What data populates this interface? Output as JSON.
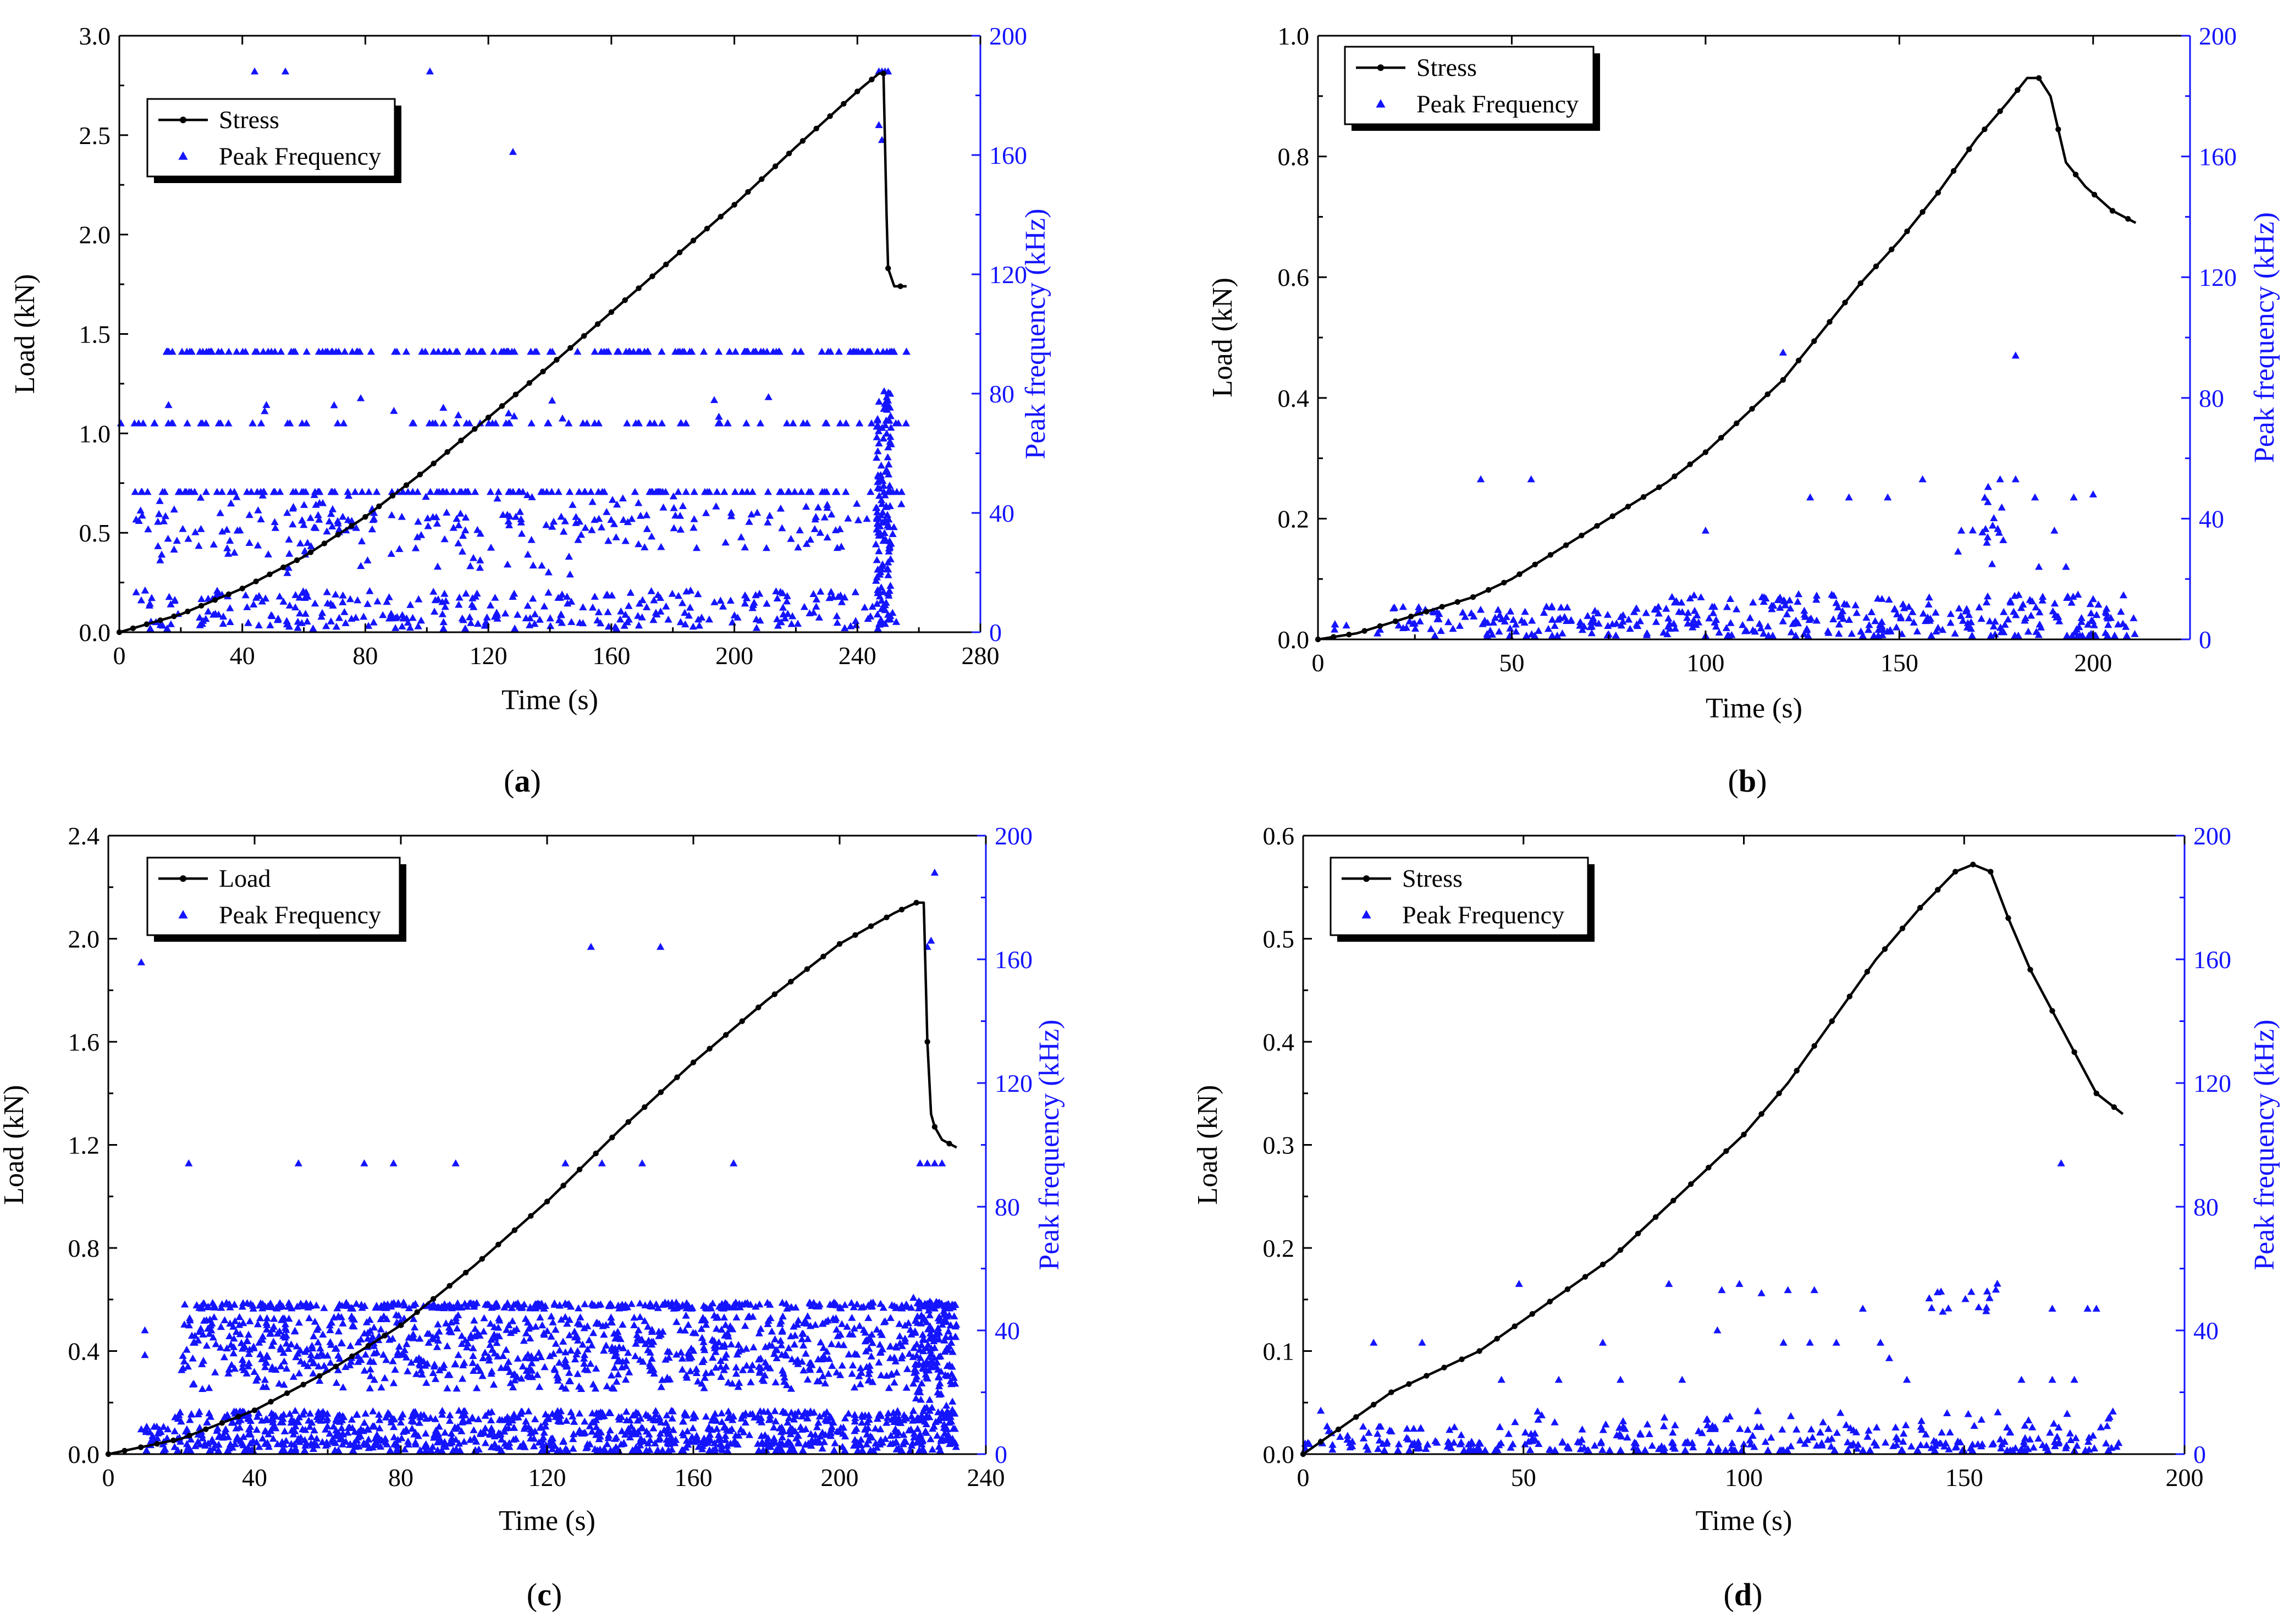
{
  "colors": {
    "load": "#000000",
    "peak": "#1414ff",
    "axis": "#000000"
  },
  "chart_data": [
    {
      "id": "a",
      "caption_open": "(",
      "caption": "a",
      "caption_close": ")",
      "type": "line+scatter",
      "xlabel": "Time (s)",
      "ylabel": "Load (kN)",
      "y2label": "Peak frequency (kHz)",
      "xlim": [
        0,
        280
      ],
      "xticks": [
        0,
        40,
        80,
        120,
        160,
        200,
        240,
        280
      ],
      "ylim": [
        0,
        3.0
      ],
      "yticks": [
        0.0,
        0.5,
        1.0,
        1.5,
        2.0,
        2.5,
        3.0
      ],
      "ydecimals": 1,
      "y2lim": [
        0,
        200
      ],
      "y2ticks": [
        0,
        40,
        80,
        120,
        160,
        200
      ],
      "legend": [
        "Stress",
        "Peak Frequency"
      ],
      "line": {
        "x": [
          0,
          20,
          40,
          60,
          80,
          100,
          120,
          140,
          160,
          180,
          200,
          220,
          240,
          247,
          248.5,
          249.5,
          250,
          252,
          256
        ],
        "y": [
          0,
          0.09,
          0.22,
          0.38,
          0.58,
          0.82,
          1.08,
          1.34,
          1.61,
          1.88,
          2.15,
          2.44,
          2.72,
          2.81,
          2.81,
          2.1,
          1.83,
          1.74,
          1.74
        ]
      },
      "scatter": {
        "x_end": 256,
        "bands": [
          {
            "y": 94,
            "from": 15,
            "to": 256,
            "density": 0.72,
            "jitter": 0
          },
          {
            "y": 70,
            "from": 0,
            "to": 256,
            "density": 0.34,
            "jitter": 0
          },
          {
            "y": 75,
            "from": 15,
            "to": 240,
            "density": 0.07,
            "jitter": 4
          },
          {
            "y": 47,
            "from": 5,
            "to": 256,
            "density": 0.58,
            "jitter": 0
          },
          {
            "y": 40,
            "from": 5,
            "to": 256,
            "density": 0.45,
            "jitter": 6
          },
          {
            "y": 34,
            "from": 5,
            "to": 256,
            "density": 0.45,
            "jitter": 6
          },
          {
            "y": 24,
            "from": 0,
            "to": 150,
            "density": 0.22,
            "jitter": 5
          },
          {
            "y": 11,
            "from": 5,
            "to": 256,
            "density": 0.6,
            "jitter": 3
          },
          {
            "y": 4,
            "from": 5,
            "to": 256,
            "density": 0.7,
            "jitter": 3
          }
        ],
        "cluster": {
          "x": [
            246,
            251
          ],
          "y": [
            2,
            82
          ],
          "count": 130
        },
        "points": [
          [
            44,
            188
          ],
          [
            54,
            188
          ],
          [
            101,
            188
          ],
          [
            128,
            161
          ],
          [
            247,
            188
          ],
          [
            248,
            188
          ],
          [
            249,
            188
          ],
          [
            250,
            188
          ],
          [
            247,
            170
          ],
          [
            248,
            165
          ]
        ]
      }
    },
    {
      "id": "b",
      "caption_open": "(",
      "caption": "b",
      "caption_close": ")",
      "type": "line+scatter",
      "xlabel": "Time (s)",
      "ylabel": "Load (kN)",
      "y2label": "Peak frequency (kHz)",
      "xlim": [
        0,
        225
      ],
      "xticks": [
        0,
        50,
        100,
        150,
        200
      ],
      "ylim": [
        0,
        1.0
      ],
      "yticks": [
        0.0,
        0.2,
        0.4,
        0.6,
        0.8,
        1.0
      ],
      "ydecimals": 1,
      "y2lim": [
        0,
        200
      ],
      "y2ticks": [
        0,
        40,
        80,
        120,
        160,
        200
      ],
      "legend": [
        "Stress",
        "Peak Frequency"
      ],
      "line": {
        "x": [
          0,
          10,
          20,
          30,
          40,
          50,
          60,
          70,
          80,
          90,
          100,
          110,
          120,
          130,
          140,
          150,
          160,
          170,
          178,
          183,
          186,
          189,
          193,
          198,
          205,
          211
        ],
        "y": [
          0,
          0.01,
          0.03,
          0.05,
          0.07,
          0.1,
          0.14,
          0.18,
          0.22,
          0.26,
          0.31,
          0.37,
          0.43,
          0.51,
          0.59,
          0.66,
          0.74,
          0.83,
          0.89,
          0.93,
          0.93,
          0.9,
          0.79,
          0.75,
          0.71,
          0.69
        ]
      },
      "scatter": {
        "x_end": 211,
        "bands": [
          {
            "y": 3,
            "from": 2,
            "to": 211,
            "density": 0.9,
            "jitter": 3
          },
          {
            "y": 8,
            "from": 15,
            "to": 211,
            "density": 0.9,
            "jitter": 3
          },
          {
            "y": 13,
            "from": 90,
            "to": 211,
            "density": 0.55,
            "jitter": 2
          }
        ],
        "cluster": {
          "x": [
            165,
            178
          ],
          "y": [
            24,
            52
          ],
          "count": 16
        },
        "points": [
          [
            42,
            53
          ],
          [
            55,
            53
          ],
          [
            100,
            36
          ],
          [
            120,
            95
          ],
          [
            127,
            47
          ],
          [
            137,
            47
          ],
          [
            147,
            47
          ],
          [
            156,
            53
          ],
          [
            166,
            36
          ],
          [
            180,
            94
          ],
          [
            176,
            53
          ],
          [
            180,
            53
          ],
          [
            185,
            47
          ],
          [
            190,
            36
          ],
          [
            193,
            24
          ],
          [
            195,
            47
          ],
          [
            200,
            48
          ],
          [
            186,
            24
          ]
        ]
      }
    },
    {
      "id": "c",
      "caption_open": "(",
      "caption": "c",
      "caption_close": ")",
      "type": "line+scatter",
      "xlabel": "Time (s)",
      "ylabel": "Load (kN)",
      "y2label": "Peak frequency (kHz)",
      "xlim": [
        0,
        240
      ],
      "xticks": [
        0,
        40,
        80,
        120,
        160,
        200,
        240
      ],
      "ylim": [
        0,
        2.4
      ],
      "yticks": [
        0.0,
        0.4,
        0.8,
        1.2,
        1.6,
        2.0,
        2.4
      ],
      "ydecimals": 1,
      "y2lim": [
        0,
        200
      ],
      "y2ticks": [
        0,
        40,
        80,
        120,
        160,
        200
      ],
      "legend": [
        "Load",
        "Peak Frequency"
      ],
      "line": {
        "x": [
          0,
          20,
          40,
          60,
          80,
          100,
          120,
          140,
          160,
          180,
          200,
          215,
          221,
          223,
          224,
          225,
          226,
          228,
          232
        ],
        "y": [
          0,
          0.06,
          0.17,
          0.32,
          0.5,
          0.73,
          0.98,
          1.26,
          1.52,
          1.76,
          1.98,
          2.1,
          2.14,
          2.14,
          1.6,
          1.32,
          1.27,
          1.22,
          1.19
        ]
      },
      "scatter": {
        "x_end": 232,
        "bands": [
          {
            "y": 48,
            "from": 20,
            "to": 232,
            "density": 1.6,
            "jitter": 1
          },
          {
            "y": 42,
            "from": 20,
            "to": 232,
            "density": 1.2,
            "jitter": 3
          },
          {
            "y": 36,
            "from": 20,
            "to": 232,
            "density": 1.3,
            "jitter": 3
          },
          {
            "y": 30,
            "from": 20,
            "to": 232,
            "density": 1.3,
            "jitter": 3
          },
          {
            "y": 24,
            "from": 20,
            "to": 232,
            "density": 0.8,
            "jitter": 3
          },
          {
            "y": 12,
            "from": 18,
            "to": 232,
            "density": 1.8,
            "jitter": 2
          },
          {
            "y": 6,
            "from": 10,
            "to": 232,
            "density": 2.2,
            "jitter": 3
          },
          {
            "y": 2,
            "from": 10,
            "to": 232,
            "density": 1.2,
            "jitter": 2
          }
        ],
        "cluster": {
          "x": [
            220,
            232
          ],
          "y": [
            2,
            52
          ],
          "count": 120
        },
        "points": [
          [
            9,
            159
          ],
          [
            22,
            94
          ],
          [
            52,
            94
          ],
          [
            70,
            94
          ],
          [
            78,
            94
          ],
          [
            95,
            94
          ],
          [
            125,
            94
          ],
          [
            132,
            164
          ],
          [
            135,
            94
          ],
          [
            146,
            94
          ],
          [
            151,
            164
          ],
          [
            171,
            94
          ],
          [
            222,
            94
          ],
          [
            224,
            94
          ],
          [
            226,
            94
          ],
          [
            228,
            94
          ],
          [
            224,
            164
          ],
          [
            225,
            166
          ],
          [
            226,
            188
          ],
          [
            10,
            40
          ],
          [
            10,
            32
          ],
          [
            9,
            8
          ]
        ]
      }
    },
    {
      "id": "d",
      "caption_open": "(",
      "caption": "d",
      "caption_close": ")",
      "type": "line+scatter",
      "xlabel": "Time (s)",
      "ylabel": "Load (kN)",
      "y2label": "Peak frequency (kHz)",
      "xlim": [
        0,
        200
      ],
      "xticks": [
        0,
        50,
        100,
        150,
        200
      ],
      "ylim": [
        0,
        0.6
      ],
      "yticks": [
        0.0,
        0.1,
        0.2,
        0.3,
        0.4,
        0.5,
        0.6
      ],
      "ydecimals": 1,
      "y2lim": [
        0,
        200
      ],
      "y2ticks": [
        0,
        40,
        80,
        120,
        160,
        200
      ],
      "legend": [
        "Stress",
        "Peak Frequency"
      ],
      "line": {
        "x": [
          0,
          10,
          20,
          30,
          40,
          50,
          60,
          70,
          80,
          90,
          100,
          110,
          120,
          130,
          140,
          148,
          152,
          156,
          160,
          165,
          170,
          175,
          180,
          186
        ],
        "y": [
          0,
          0.03,
          0.06,
          0.08,
          0.1,
          0.13,
          0.16,
          0.19,
          0.23,
          0.27,
          0.31,
          0.36,
          0.42,
          0.48,
          0.53,
          0.565,
          0.572,
          0.565,
          0.52,
          0.47,
          0.43,
          0.39,
          0.35,
          0.33
        ]
      },
      "scatter": {
        "x_end": 186,
        "bands": [
          {
            "y": 2,
            "from": 0,
            "to": 186,
            "density": 1.1,
            "jitter": 2
          },
          {
            "y": 6,
            "from": 0,
            "to": 186,
            "density": 0.75,
            "jitter": 3
          },
          {
            "y": 11,
            "from": 40,
            "to": 186,
            "density": 0.25,
            "jitter": 3
          }
        ],
        "cluster": {
          "x": [
            140,
            158
          ],
          "y": [
            46,
            58
          ],
          "count": 16
        },
        "points": [
          [
            4,
            14
          ],
          [
            16,
            36
          ],
          [
            27,
            36
          ],
          [
            45,
            24
          ],
          [
            49,
            55
          ],
          [
            58,
            24
          ],
          [
            68,
            36
          ],
          [
            72,
            24
          ],
          [
            83,
            55
          ],
          [
            86,
            24
          ],
          [
            95,
            53
          ],
          [
            99,
            55
          ],
          [
            104,
            52
          ],
          [
            110,
            53
          ],
          [
            116,
            53
          ],
          [
            109,
            36
          ],
          [
            115,
            36
          ],
          [
            121,
            36
          ],
          [
            127,
            47
          ],
          [
            131,
            36
          ],
          [
            133,
            31
          ],
          [
            137,
            24
          ],
          [
            163,
            24
          ],
          [
            170,
            24
          ],
          [
            172,
            94
          ],
          [
            175,
            24
          ],
          [
            170,
            47
          ],
          [
            178,
            47
          ],
          [
            180,
            47
          ],
          [
            183,
            12
          ],
          [
            94,
            40
          ]
        ]
      }
    }
  ]
}
